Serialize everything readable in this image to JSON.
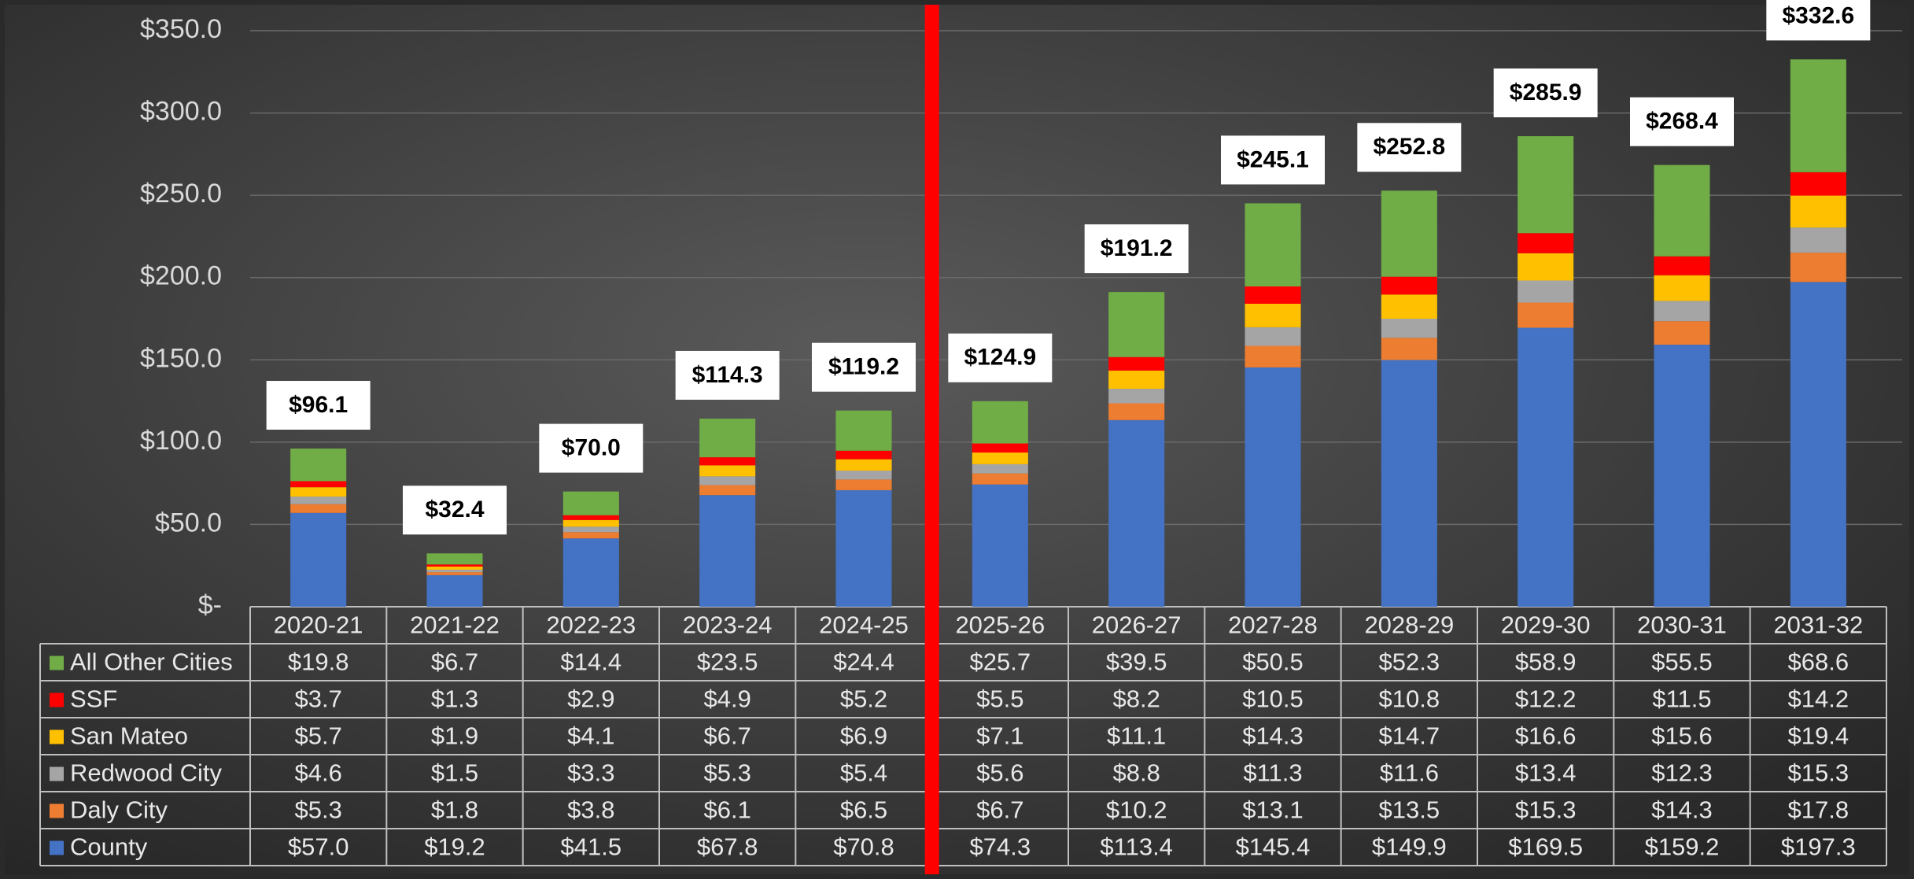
{
  "chart_data": {
    "type": "bar",
    "stacked": true,
    "categories": [
      "2020-21",
      "2021-22",
      "2022-23",
      "2023-24",
      "2024-25",
      "2025-26",
      "2026-27",
      "2027-28",
      "2028-29",
      "2029-30",
      "2030-31",
      "2031-32"
    ],
    "series": [
      {
        "name": "County",
        "color": "#4472c4",
        "values": [
          57.0,
          19.2,
          41.5,
          67.8,
          70.8,
          74.3,
          113.4,
          145.4,
          149.9,
          169.5,
          159.2,
          197.3
        ],
        "value_labels": [
          "$57.0",
          "$19.2",
          "$41.5",
          "$67.8",
          "$70.8",
          "$74.3",
          "$113.4",
          "$145.4",
          "$149.9",
          "$169.5",
          "$159.2",
          "$197.3"
        ]
      },
      {
        "name": "Daly City",
        "color": "#ed7d31",
        "values": [
          5.3,
          1.8,
          3.8,
          6.1,
          6.5,
          6.7,
          10.2,
          13.1,
          13.5,
          15.3,
          14.3,
          17.8
        ],
        "value_labels": [
          "$5.3",
          "$1.8",
          "$3.8",
          "$6.1",
          "$6.5",
          "$6.7",
          "$10.2",
          "$13.1",
          "$13.5",
          "$15.3",
          "$14.3",
          "$17.8"
        ]
      },
      {
        "name": "Redwood City",
        "color": "#a5a5a5",
        "values": [
          4.6,
          1.5,
          3.3,
          5.3,
          5.4,
          5.6,
          8.8,
          11.3,
          11.6,
          13.4,
          12.3,
          15.3
        ],
        "value_labels": [
          "$4.6",
          "$1.5",
          "$3.3",
          "$5.3",
          "$5.4",
          "$5.6",
          "$8.8",
          "$11.3",
          "$11.6",
          "$13.4",
          "$12.3",
          "$15.3"
        ]
      },
      {
        "name": "San Mateo",
        "color": "#ffc000",
        "values": [
          5.7,
          1.9,
          4.1,
          6.7,
          6.9,
          7.1,
          11.1,
          14.3,
          14.7,
          16.6,
          15.6,
          19.4
        ],
        "value_labels": [
          "$5.7",
          "$1.9",
          "$4.1",
          "$6.7",
          "$6.9",
          "$7.1",
          "$11.1",
          "$14.3",
          "$14.7",
          "$16.6",
          "$15.6",
          "$19.4"
        ]
      },
      {
        "name": "SSF",
        "color": "#ff0000",
        "values": [
          3.7,
          1.3,
          2.9,
          4.9,
          5.2,
          5.5,
          8.2,
          10.5,
          10.8,
          12.2,
          11.5,
          14.2
        ],
        "value_labels": [
          "$3.7",
          "$1.3",
          "$2.9",
          "$4.9",
          "$5.2",
          "$5.5",
          "$8.2",
          "$10.5",
          "$10.8",
          "$12.2",
          "$11.5",
          "$14.2"
        ]
      },
      {
        "name": "All Other Cities",
        "color": "#70ad47",
        "values": [
          19.8,
          6.7,
          14.4,
          23.5,
          24.4,
          25.7,
          39.5,
          50.5,
          52.3,
          58.9,
          55.5,
          68.6
        ],
        "value_labels": [
          "$19.8",
          "$6.7",
          "$14.4",
          "$23.5",
          "$24.4",
          "$25.7",
          "$39.5",
          "$50.5",
          "$52.3",
          "$58.9",
          "$55.5",
          "$68.6"
        ]
      }
    ],
    "totals": [
      96.1,
      32.4,
      70.0,
      114.3,
      119.2,
      124.9,
      191.2,
      245.1,
      252.8,
      285.9,
      268.4,
      332.6
    ],
    "total_labels": [
      "$96.1",
      "$32.4",
      "$70.0",
      "$114.3",
      "$119.2",
      "$124.9",
      "$191.2",
      "$245.1",
      "$252.8",
      "$285.9",
      "$268.4",
      "$332.6"
    ],
    "ylim": [
      0,
      350
    ],
    "yticks": [
      {
        "value": 0,
        "label": "$-"
      },
      {
        "value": 50,
        "label": "$50.0"
      },
      {
        "value": 100,
        "label": "$100.0"
      },
      {
        "value": 150,
        "label": "$150.0"
      },
      {
        "value": 200,
        "label": "$200.0"
      },
      {
        "value": 250,
        "label": "$250.0"
      },
      {
        "value": 300,
        "label": "$300.0"
      },
      {
        "value": 350,
        "label": "$350.0"
      }
    ],
    "grid": true
  }
}
